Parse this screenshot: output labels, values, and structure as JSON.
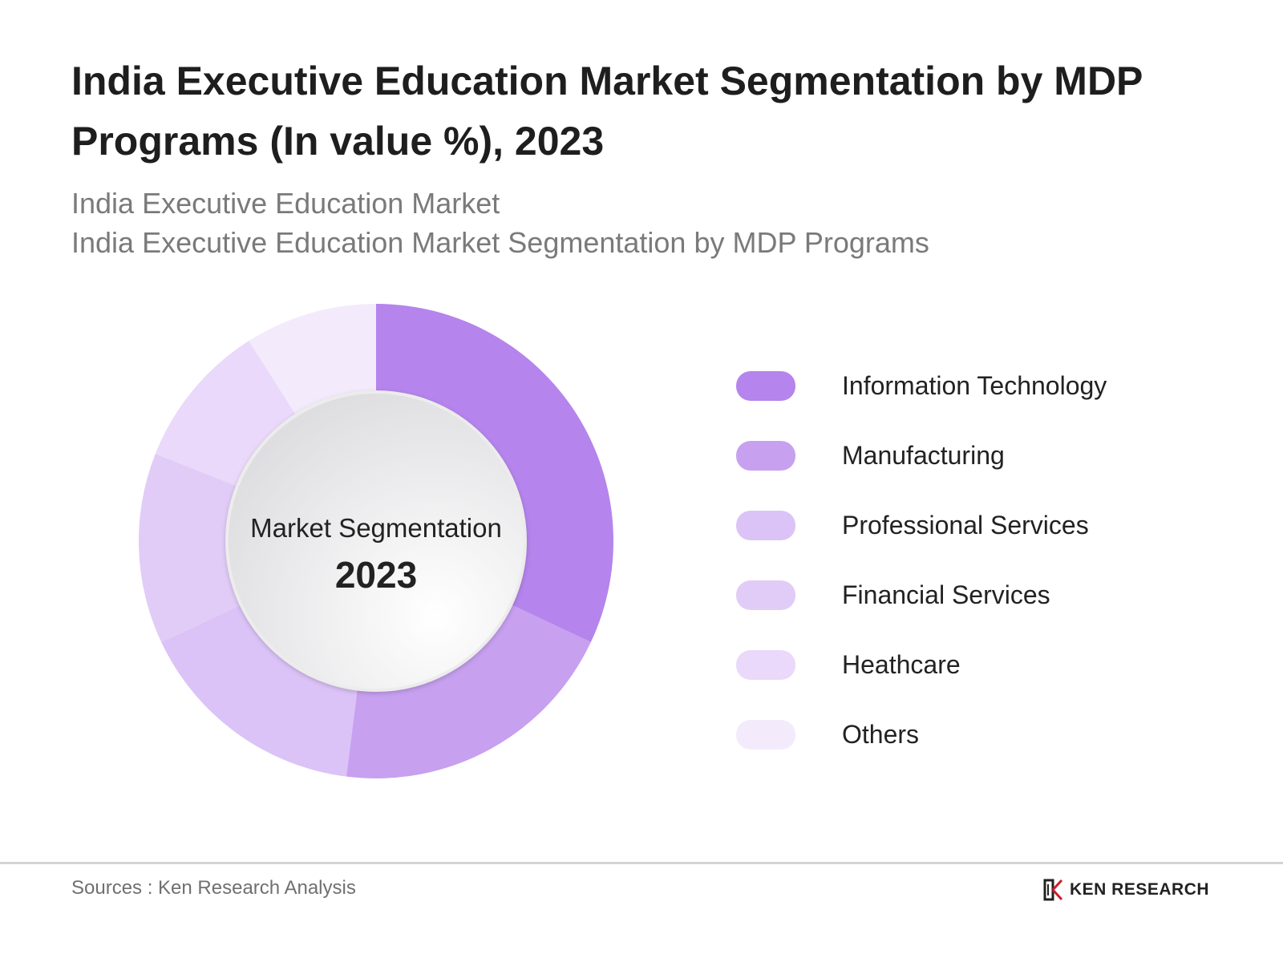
{
  "chart_data": {
    "type": "pie",
    "title": "India Executive Education Market Segmentation by MDP Programs (In value %), 2023",
    "subtitle_lines": [
      "India Executive Education Market",
      "India Executive Education Market Segmentation by MDP Programs"
    ],
    "center_label": "Market Segmentation",
    "center_year": "2023",
    "categories": [
      "Information Technology",
      "Manufacturing",
      "Professional Services",
      "Financial Services",
      "Heathcare",
      "Others"
    ],
    "values": [
      32,
      20,
      16,
      13,
      10,
      9
    ],
    "colors": [
      "#b584ec",
      "#c7a0f0",
      "#dbc3f7",
      "#e1ccf8",
      "#ead9fa",
      "#f3ebfc"
    ],
    "legend_position": "right"
  },
  "footer": {
    "source": "Sources : Ken Research Analysis",
    "logo_text": "KEN RESEARCH",
    "logo_mark": "ken-research-logo-icon"
  }
}
